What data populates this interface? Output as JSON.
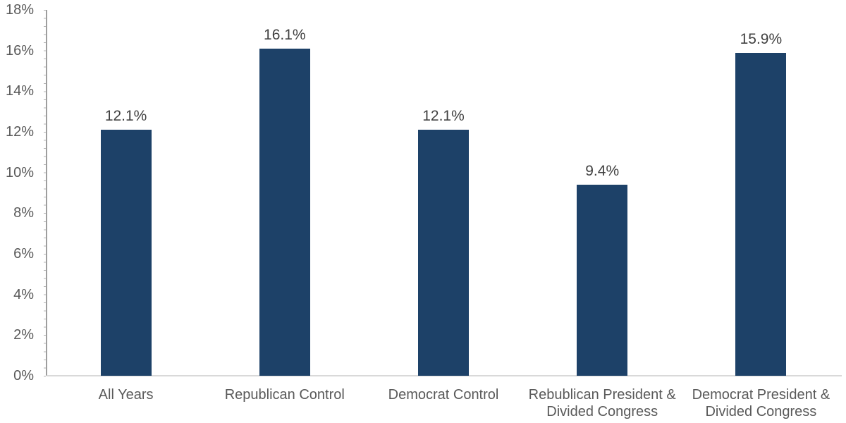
{
  "chart_data": {
    "type": "bar",
    "title": "",
    "xlabel": "",
    "ylabel": "",
    "categories": [
      "All Years",
      "Republican Control",
      "Democrat Control",
      "Rebublican President & Divided Congress",
      "Democrat President & Divided Congress"
    ],
    "values": [
      12.1,
      16.1,
      12.1,
      9.4,
      15.9
    ],
    "value_labels": [
      "12.1%",
      "16.1%",
      "12.1%",
      "9.4%",
      "15.9%"
    ],
    "ylim": [
      0,
      18
    ],
    "y_tick_step": 2,
    "y_tick_labels": [
      "0%",
      "2%",
      "4%",
      "6%",
      "8%",
      "10%",
      "12%",
      "14%",
      "16%",
      "18%"
    ],
    "grid": false,
    "legend": false,
    "colors": {
      "bar_fill": "#1d4168",
      "y_axis_line": "#9e9e9e",
      "minor_tick": "#b3b3b3",
      "x_baseline": "#d9d9d9",
      "axis_tick_label": "#595959",
      "data_label": "#404040",
      "background": "#ffffff"
    }
  }
}
